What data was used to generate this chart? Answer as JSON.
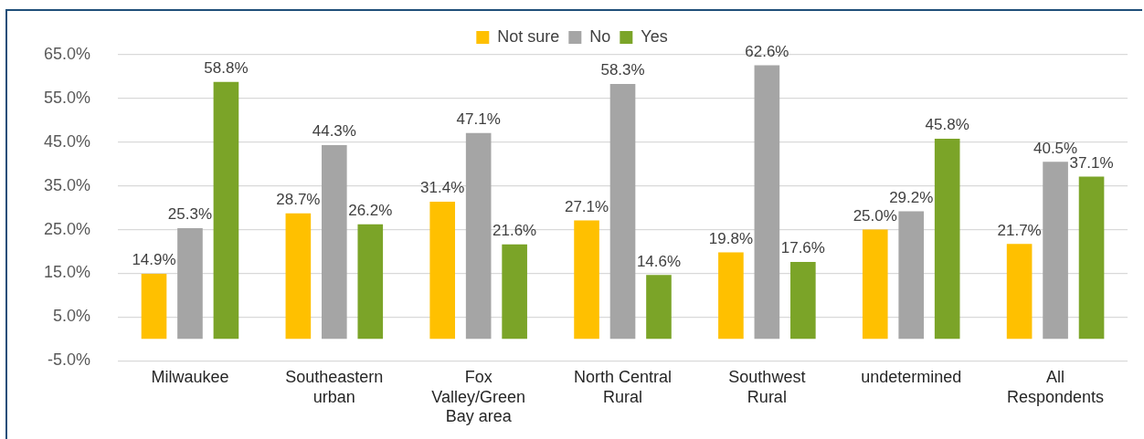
{
  "chart_data": {
    "type": "bar",
    "categories": [
      "Milwaukee",
      "Southeastern urban",
      "Fox Valley/Green Bay area",
      "North Central Rural",
      "Southwest Rural",
      "undetermined",
      "All Respondents"
    ],
    "series": [
      {
        "name": "Not sure",
        "color": "#ffc000",
        "values": [
          14.9,
          28.7,
          31.4,
          27.1,
          19.8,
          25.0,
          21.7
        ],
        "value_labels": [
          "14.9%",
          "28.7%",
          "31.4%",
          "27.1%",
          "19.8%",
          "25.0%",
          "21.7%"
        ]
      },
      {
        "name": "No",
        "color": "#a5a5a5",
        "values": [
          25.3,
          44.3,
          47.1,
          58.3,
          62.6,
          29.2,
          40.5
        ],
        "value_labels": [
          "25.3%",
          "44.3%",
          "47.1%",
          "58.3%",
          "62.6%",
          "29.2%",
          "40.5%"
        ]
      },
      {
        "name": "Yes",
        "color": "#7ba428",
        "values": [
          58.8,
          26.2,
          21.6,
          14.6,
          17.6,
          45.8,
          37.1
        ],
        "value_labels": [
          "58.8%",
          "26.2%",
          "21.6%",
          "14.6%",
          "17.6%",
          "45.8%",
          "37.1%"
        ]
      }
    ],
    "ylim": [
      -5,
      65
    ],
    "yticks": [
      {
        "value": -5,
        "label": "-5.0%"
      },
      {
        "value": 5,
        "label": "5.0%"
      },
      {
        "value": 15,
        "label": "15.0%"
      },
      {
        "value": 25,
        "label": "25.0%"
      },
      {
        "value": 35,
        "label": "35.0%"
      },
      {
        "value": 45,
        "label": "45.0%"
      },
      {
        "value": 55,
        "label": "55.0%"
      },
      {
        "value": 65,
        "label": "65.0%"
      }
    ],
    "grid": "y",
    "legend": "top"
  }
}
